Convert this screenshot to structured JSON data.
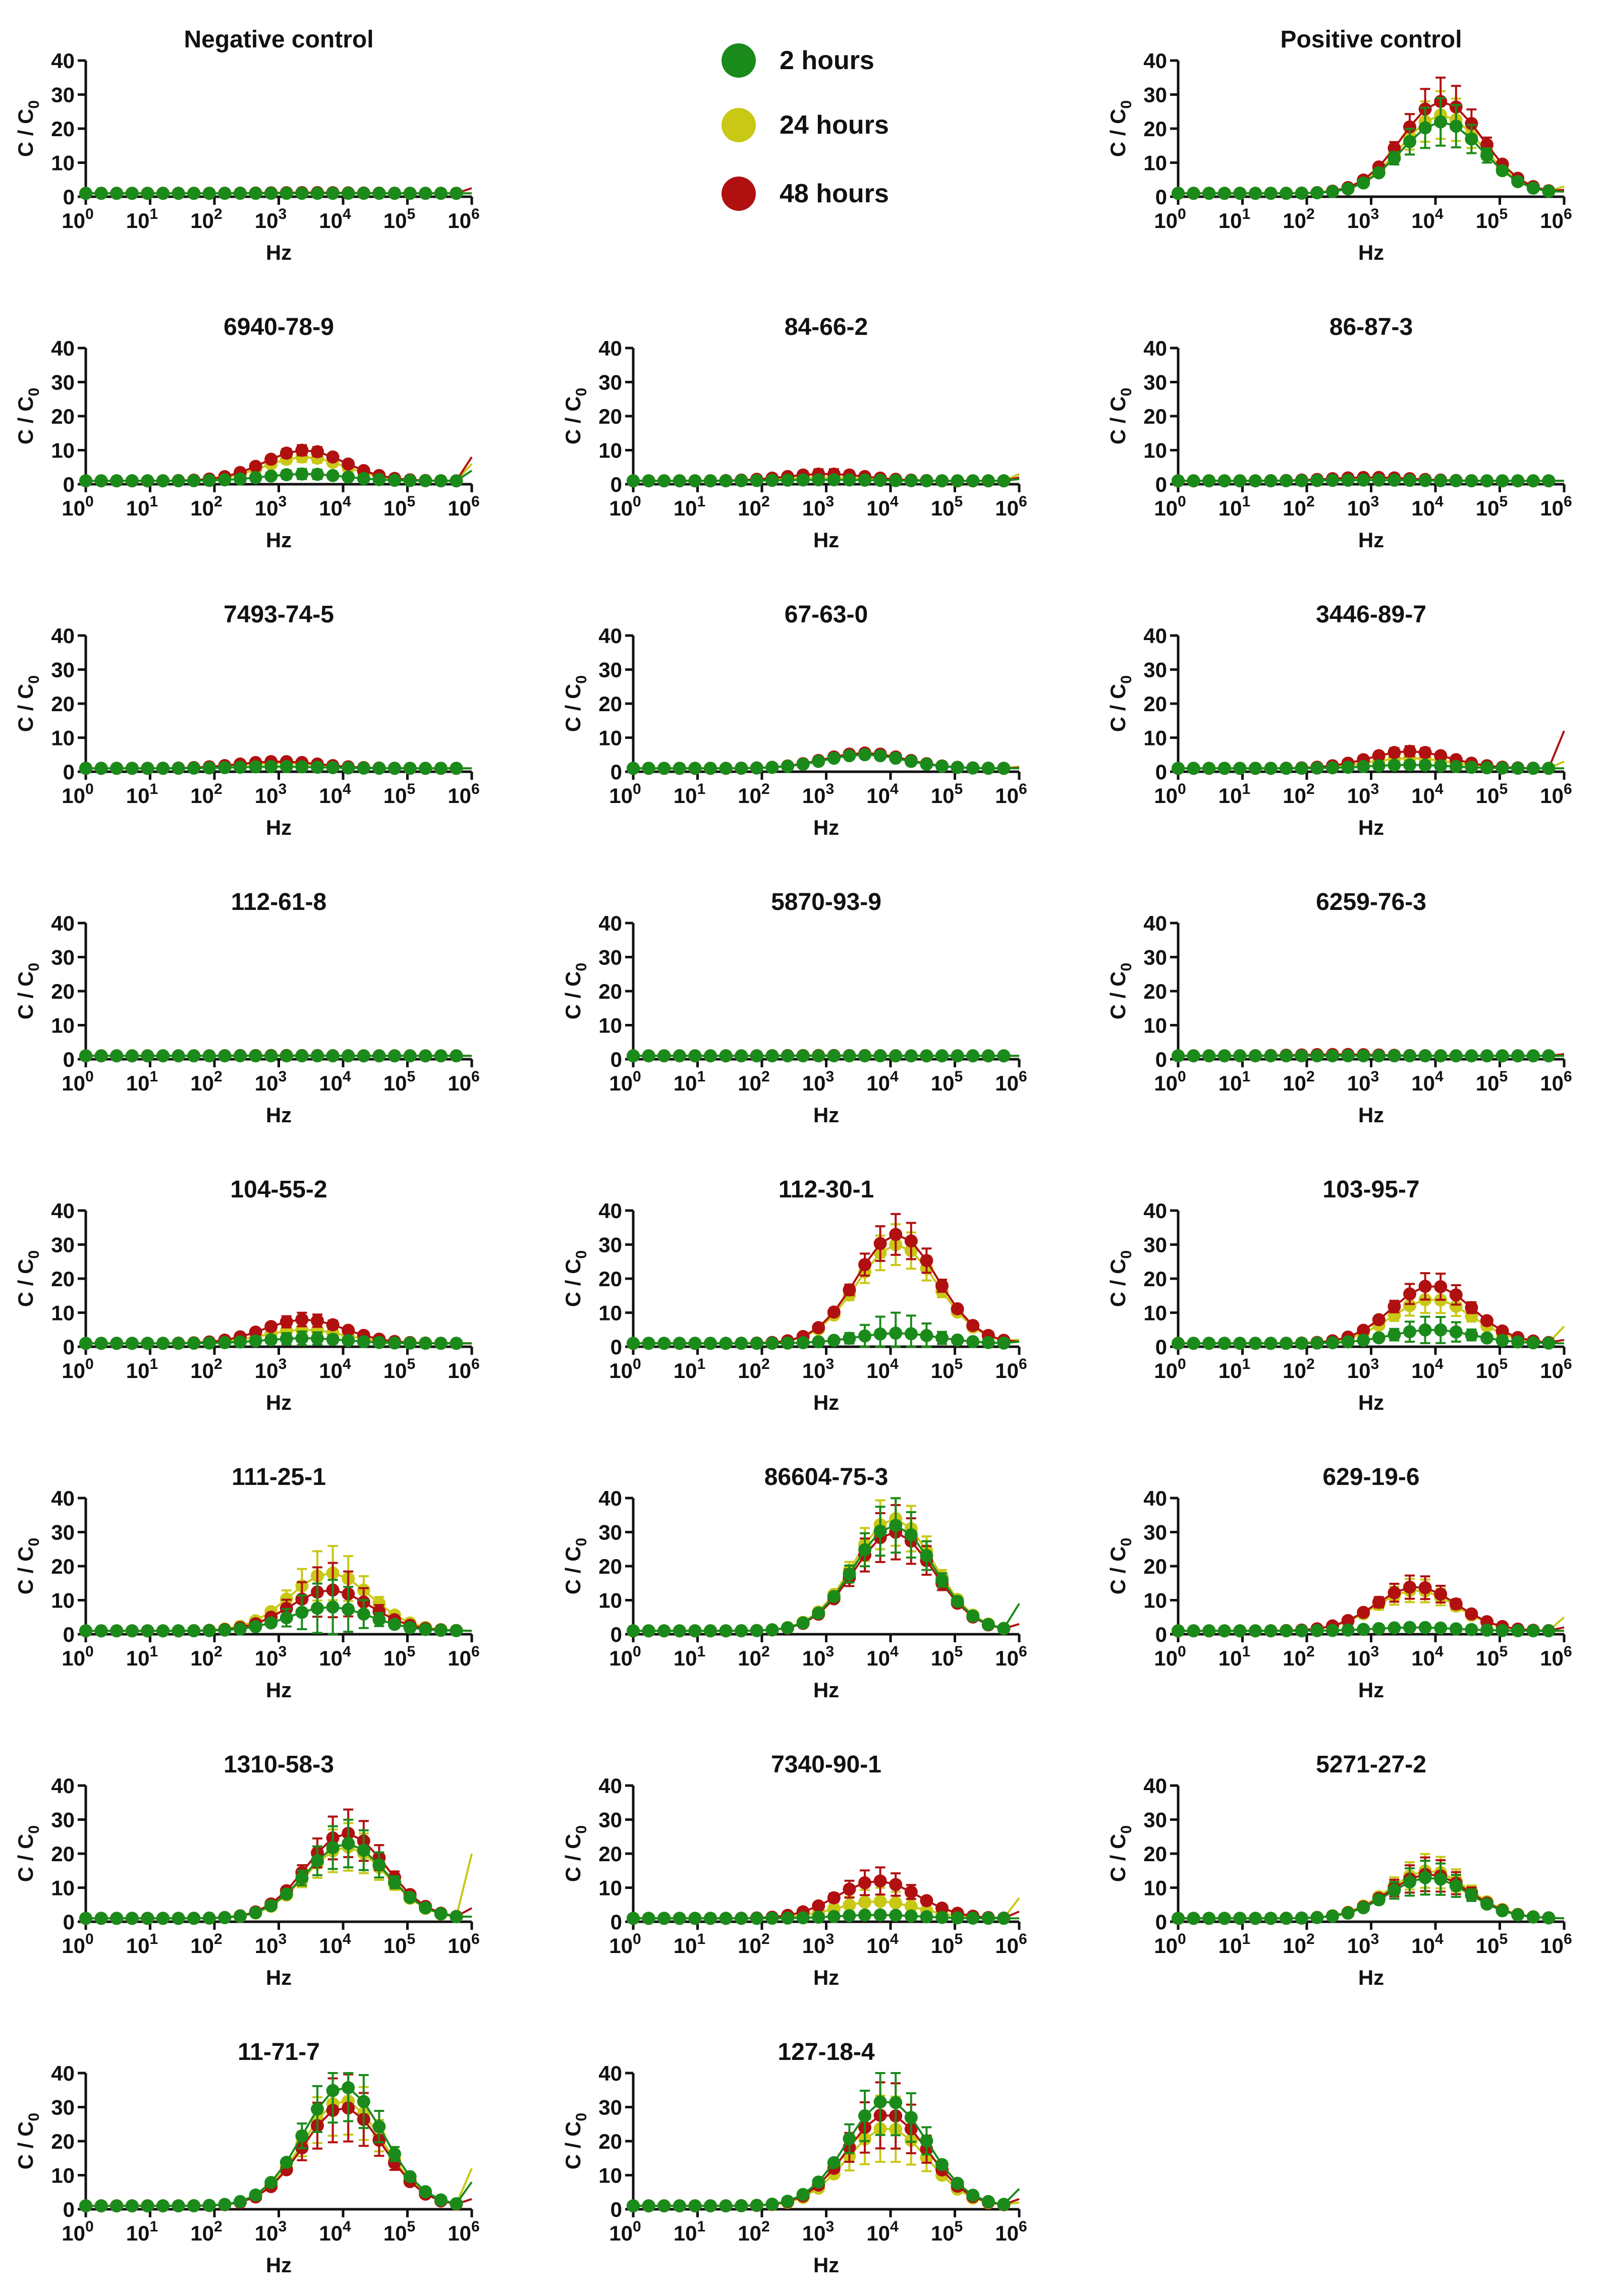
{
  "series_info": [
    {
      "key": "h2",
      "name": "2 hours",
      "color": "#1a8a1a"
    },
    {
      "key": "h24",
      "name": "24 hours",
      "color": "#c8c815"
    },
    {
      "key": "h48",
      "name": "48 hours",
      "color": "#b01010"
    }
  ],
  "axes": {
    "ylabel_main": "C / C",
    "ylabel_sub": "0",
    "xlabel": "Hz",
    "y_ticks": [
      "0",
      "10",
      "20",
      "30",
      "40"
    ],
    "x_tick_exponents": [
      "0",
      "1",
      "2",
      "3",
      "4",
      "5",
      "6"
    ],
    "x_tick_base": "10",
    "ylim": [
      0,
      40
    ],
    "xlim_log10": [
      0,
      6
    ]
  },
  "legend": {
    "h2": "2 hours",
    "h24": "24 hours",
    "h48": "48 hours"
  },
  "chart_data": [
    {
      "type": "line",
      "title": "Negative control",
      "grid": false,
      "peak": {
        "h2": 1,
        "h24": 1.1,
        "h48": 1.2
      },
      "center_log10": 3.5,
      "err": 0.3,
      "tail": {
        "h2": 1,
        "h24": 1,
        "h48": 2.5
      }
    },
    {
      "type": "line",
      "title": "Positive control",
      "grid": false,
      "peak": {
        "h2": 22,
        "h24": 24,
        "h48": 28
      },
      "center_log10": 4.1,
      "err": 7,
      "tail": {
        "h2": 1.5,
        "h24": 3,
        "h48": 2
      }
    },
    {
      "type": "line",
      "title": "6940-78-9",
      "grid": false,
      "peak": {
        "h2": 3,
        "h24": 8,
        "h48": 10
      },
      "center_log10": 3.4,
      "err": 1.5,
      "tail": {
        "h2": 4,
        "h24": 6,
        "h48": 8
      }
    },
    {
      "type": "line",
      "title": "84-66-2",
      "grid": false,
      "peak": {
        "h2": 1.3,
        "h24": 2,
        "h48": 3
      },
      "center_log10": 3.0,
      "err": 1.5,
      "tail": {
        "h2": 1.5,
        "h24": 3,
        "h48": 2
      }
    },
    {
      "type": "line",
      "title": "86-87-3",
      "grid": false,
      "peak": {
        "h2": 1.2,
        "h24": 1.5,
        "h48": 2
      },
      "center_log10": 3.0,
      "err": 0.4,
      "tail": {
        "h2": 1,
        "h24": 1,
        "h48": 1
      }
    },
    {
      "type": "line",
      "title": "7493-74-5",
      "grid": false,
      "peak": {
        "h2": 1.5,
        "h24": 2.5,
        "h48": 3
      },
      "center_log10": 3.0,
      "err": 0.8,
      "tail": {
        "h2": 1,
        "h24": 1,
        "h48": 1
      }
    },
    {
      "type": "line",
      "title": "67-63-0",
      "grid": false,
      "peak": {
        "h2": 5,
        "h24": 5.2,
        "h48": 5.5
      },
      "center_log10": 3.6,
      "err": 0.6,
      "tail": {
        "h2": 1,
        "h24": 1.5,
        "h48": 1.2
      }
    },
    {
      "type": "line",
      "title": "3446-89-7",
      "grid": false,
      "peak": {
        "h2": 2,
        "h24": 4,
        "h48": 6
      },
      "center_log10": 3.6,
      "err": 1.5,
      "tail": {
        "h2": 1,
        "h24": 3,
        "h48": 12
      }
    },
    {
      "type": "line",
      "title": "112-61-8",
      "grid": false,
      "peak": {
        "h2": 1,
        "h24": 1,
        "h48": 1.1
      },
      "center_log10": 3.0,
      "err": 0.3,
      "tail": {
        "h2": 1,
        "h24": 1,
        "h48": 1
      }
    },
    {
      "type": "line",
      "title": "5870-93-9",
      "grid": false,
      "peak": {
        "h2": 1,
        "h24": 1,
        "h48": 1.1
      },
      "center_log10": 3.0,
      "err": 0.3,
      "tail": {
        "h2": 1,
        "h24": 1,
        "h48": 1
      }
    },
    {
      "type": "line",
      "title": "6259-76-3",
      "grid": false,
      "peak": {
        "h2": 1,
        "h24": 1.1,
        "h48": 1.4
      },
      "center_log10": 2.5,
      "err": 0.4,
      "tail": {
        "h2": 1,
        "h24": 1,
        "h48": 1.5
      }
    },
    {
      "type": "line",
      "title": "104-55-2",
      "grid": false,
      "peak": {
        "h2": 2.5,
        "h24": 5,
        "h48": 8
      },
      "center_log10": 3.4,
      "err": 2,
      "tail": {
        "h2": 1,
        "h24": 1,
        "h48": 1
      }
    },
    {
      "type": "line",
      "title": "112-30-1",
      "grid": false,
      "peak": {
        "h2": 4,
        "h24": 30,
        "h48": 33
      },
      "center_log10": 4.1,
      "err": 6,
      "tail": {
        "h2": 1.5,
        "h24": 2,
        "h48": 1.5
      }
    },
    {
      "type": "line",
      "title": "103-95-7",
      "grid": false,
      "peak": {
        "h2": 5,
        "h24": 14,
        "h48": 18
      },
      "center_log10": 3.95,
      "err": 4,
      "tail": {
        "h2": 1,
        "h24": 6,
        "h48": 2
      }
    },
    {
      "type": "line",
      "title": "111-25-1",
      "grid": false,
      "peak": {
        "h2": 8,
        "h24": 18,
        "h48": 13
      },
      "center_log10": 3.8,
      "err": 8,
      "tail": {
        "h2": 1,
        "h24": 1,
        "h48": 1
      }
    },
    {
      "type": "line",
      "title": "86604-75-3",
      "grid": false,
      "peak": {
        "h2": 32,
        "h24": 34,
        "h48": 30
      },
      "center_log10": 4.05,
      "err": 8,
      "tail": {
        "h2": 9,
        "h24": 3,
        "h48": 3
      }
    },
    {
      "type": "line",
      "title": "629-19-6",
      "grid": false,
      "peak": {
        "h2": 2,
        "h24": 13,
        "h48": 14
      },
      "center_log10": 3.7,
      "err": 3.5,
      "tail": {
        "h2": 1,
        "h24": 5,
        "h48": 2
      }
    },
    {
      "type": "line",
      "title": "1310-58-3",
      "grid": false,
      "peak": {
        "h2": 23,
        "h24": 22,
        "h48": 26
      },
      "center_log10": 4.05,
      "err": 7,
      "tail": {
        "h2": 1.5,
        "h24": 20,
        "h48": 4
      }
    },
    {
      "type": "line",
      "title": "7340-90-1",
      "grid": false,
      "peak": {
        "h2": 2,
        "h24": 6,
        "h48": 12
      },
      "center_log10": 3.8,
      "err": 4,
      "tail": {
        "h2": 1,
        "h24": 7,
        "h48": 3
      }
    },
    {
      "type": "line",
      "title": "5271-27-2",
      "grid": false,
      "peak": {
        "h2": 13,
        "h24": 15,
        "h48": 14
      },
      "center_log10": 3.9,
      "err": 5,
      "tail": {
        "h2": 1,
        "h24": 1,
        "h48": 1
      }
    },
    {
      "type": "line",
      "title": "11-71-7",
      "grid": false,
      "peak": {
        "h2": 36,
        "h24": 32,
        "h48": 30
      },
      "center_log10": 4.0,
      "err": 10,
      "tail": {
        "h2": 8,
        "h24": 12,
        "h48": 3
      }
    },
    {
      "type": "line",
      "title": "127-18-4",
      "grid": false,
      "peak": {
        "h2": 32,
        "h24": 24,
        "h48": 28
      },
      "center_log10": 3.95,
      "err": 10,
      "tail": {
        "h2": 6,
        "h24": 2,
        "h48": 3
      }
    }
  ]
}
